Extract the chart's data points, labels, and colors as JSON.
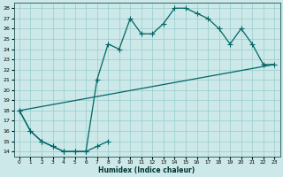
{
  "xlabel": "Humidex (Indice chaleur)",
  "xlim": [
    -0.5,
    23.5
  ],
  "ylim": [
    13.5,
    28.5
  ],
  "xticks": [
    0,
    1,
    2,
    3,
    4,
    5,
    6,
    7,
    8,
    9,
    10,
    11,
    12,
    13,
    14,
    15,
    16,
    17,
    18,
    19,
    20,
    21,
    22,
    23
  ],
  "yticks": [
    14,
    15,
    16,
    17,
    18,
    19,
    20,
    21,
    22,
    23,
    24,
    25,
    26,
    27,
    28
  ],
  "bg_color": "#cce8e8",
  "grid_color": "#99cccc",
  "line_color": "#006666",
  "line1_x": [
    0,
    1,
    2,
    3,
    4,
    5,
    6,
    7,
    8
  ],
  "line1_y": [
    18,
    16,
    15,
    14.5,
    14,
    14,
    14,
    14.5,
    15
  ],
  "line2_x": [
    0,
    1,
    2,
    3,
    4,
    5,
    6,
    7,
    8,
    9,
    10,
    11,
    12,
    13,
    14,
    15,
    16,
    17,
    18,
    19,
    20,
    21,
    22,
    23
  ],
  "line2_y": [
    18,
    16,
    15,
    14.5,
    14,
    14,
    14,
    21,
    24.5,
    24,
    27,
    25.5,
    25.5,
    26.5,
    28,
    28,
    27.5,
    27,
    26,
    24.5,
    26,
    24.5,
    22.5,
    22.5
  ],
  "line3_x": [
    0,
    23
  ],
  "line3_y": [
    18,
    22.5
  ],
  "marker": "+",
  "markersize": 4,
  "linewidth": 0.9
}
